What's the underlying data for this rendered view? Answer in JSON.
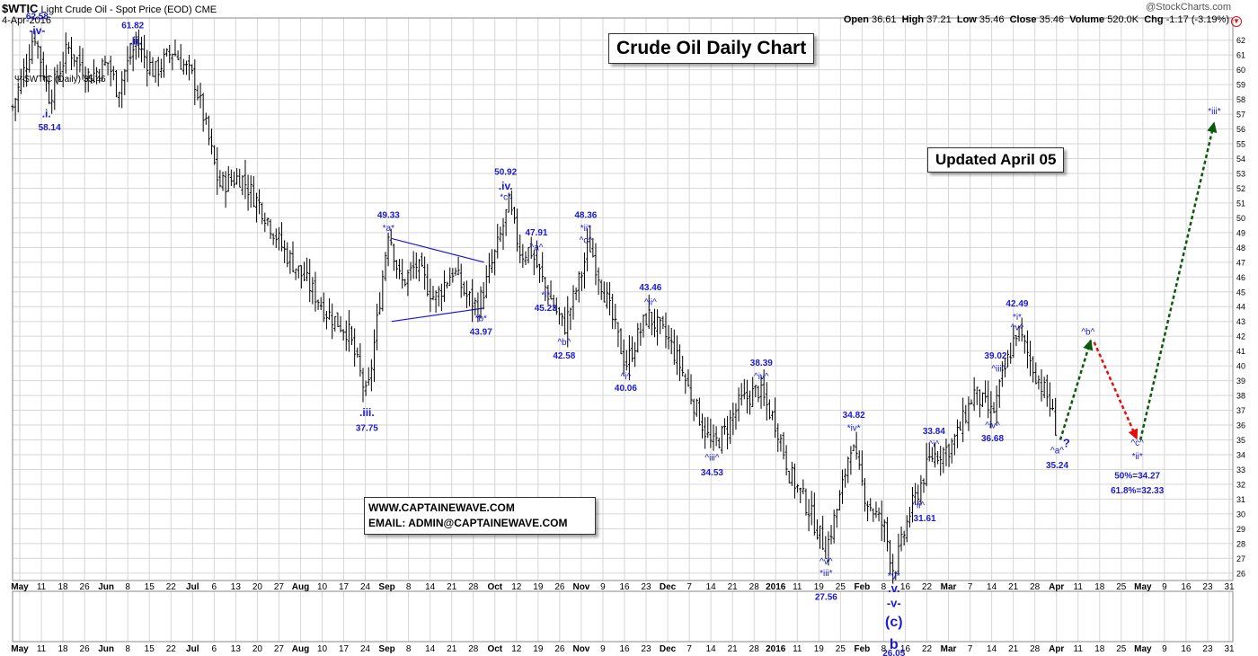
{
  "header": {
    "symbol": "$WTIC",
    "name": "Light Crude Oil - Spot Price (EOD)",
    "exchange": "CME",
    "date": "4-Apr-2016",
    "open_label": "Open",
    "open": "36.61",
    "high_label": "High",
    "high": "37.21",
    "low_label": "Low",
    "low": "35.46",
    "close_label": "Close",
    "close": "35.46",
    "volume_label": "Volume",
    "volume": "520.0K",
    "chg_label": "Chg",
    "chg": "-1.17 (-3.19%)",
    "watermark": "@StockCharts.com",
    "legend": "$WTIC (Daily) 35.46"
  },
  "boxes": {
    "title": "Crude Oil Daily Chart",
    "updated": "Updated April 05",
    "website": "WWW.CAPTAINEWAVE.COM",
    "email": "EMAIL: ADMIN@CAPTAINEWAVE.COM"
  },
  "colors": {
    "price": "#000000",
    "wave_label": "#1a1ad6",
    "triangle": "#1a1ad6",
    "bull_arrow": "#0a5a0a",
    "bear_arrow": "#e01010",
    "grid": "#d6d6d6"
  },
  "chart_data": {
    "type": "ohlc",
    "y_axis": {
      "side": "right",
      "min": 25.5,
      "max": 63.5,
      "ticks": [
        26,
        27,
        28,
        29,
        30,
        31,
        32,
        33,
        34,
        35,
        36,
        37,
        38,
        39,
        40,
        41,
        42,
        43,
        44,
        45,
        46,
        47,
        48,
        49,
        50,
        51,
        52,
        53,
        54,
        55,
        56,
        57,
        58,
        59,
        60,
        61,
        62
      ]
    },
    "x_axis": {
      "ticks": [
        {
          "label": "May",
          "bold": true
        },
        {
          "label": "11"
        },
        {
          "label": "18"
        },
        {
          "label": "26"
        },
        {
          "label": "Jun",
          "bold": true
        },
        {
          "label": "8"
        },
        {
          "label": "15"
        },
        {
          "label": "22"
        },
        {
          "label": "Jul",
          "bold": true
        },
        {
          "label": "6"
        },
        {
          "label": "13"
        },
        {
          "label": "20"
        },
        {
          "label": "27"
        },
        {
          "label": "Aug",
          "bold": true
        },
        {
          "label": "10"
        },
        {
          "label": "17"
        },
        {
          "label": "24"
        },
        {
          "label": "Sep",
          "bold": true
        },
        {
          "label": "8"
        },
        {
          "label": "14"
        },
        {
          "label": "21"
        },
        {
          "label": "28"
        },
        {
          "label": "Oct",
          "bold": true
        },
        {
          "label": "12"
        },
        {
          "label": "19"
        },
        {
          "label": "26"
        },
        {
          "label": "Nov",
          "bold": true
        },
        {
          "label": "9"
        },
        {
          "label": "16"
        },
        {
          "label": "23"
        },
        {
          "label": "Dec",
          "bold": true
        },
        {
          "label": "7"
        },
        {
          "label": "14"
        },
        {
          "label": "21"
        },
        {
          "label": "28"
        },
        {
          "label": "2016",
          "bold": true
        },
        {
          "label": "11"
        },
        {
          "label": "19"
        },
        {
          "label": "25"
        },
        {
          "label": "Feb",
          "bold": true
        },
        {
          "label": "8"
        },
        {
          "label": "16"
        },
        {
          "label": "22"
        },
        {
          "label": "Mar",
          "bold": true
        },
        {
          "label": "7"
        },
        {
          "label": "14"
        },
        {
          "label": "21"
        },
        {
          "label": "28"
        },
        {
          "label": "Apr",
          "bold": true
        },
        {
          "label": "11"
        },
        {
          "label": "18"
        },
        {
          "label": "25"
        },
        {
          "label": "May",
          "bold": true
        },
        {
          "label": "9"
        },
        {
          "label": "16"
        },
        {
          "label": "23"
        },
        {
          "label": "31"
        }
      ]
    },
    "price_path": [
      {
        "d": "2015-05-01",
        "p": 57.5
      },
      {
        "d": "2015-05-06",
        "p": 60.8
      },
      {
        "d": "2015-05-08",
        "p": 62.58
      },
      {
        "d": "2015-05-13",
        "p": 58.14
      },
      {
        "d": "2015-05-19",
        "p": 61.5
      },
      {
        "d": "2015-05-26",
        "p": 59.5
      },
      {
        "d": "2015-06-01",
        "p": 60.5
      },
      {
        "d": "2015-06-04",
        "p": 58.6
      },
      {
        "d": "2015-06-10",
        "p": 61.82
      },
      {
        "d": "2015-06-16",
        "p": 59.8
      },
      {
        "d": "2015-06-22",
        "p": 61.3
      },
      {
        "d": "2015-06-29",
        "p": 59.3
      },
      {
        "d": "2015-07-02",
        "p": 56.8
      },
      {
        "d": "2015-07-07",
        "p": 52.2
      },
      {
        "d": "2015-07-14",
        "p": 52.8
      },
      {
        "d": "2015-07-21",
        "p": 50.6
      },
      {
        "d": "2015-07-28",
        "p": 47.8
      },
      {
        "d": "2015-08-04",
        "p": 45.8
      },
      {
        "d": "2015-08-11",
        "p": 43.6
      },
      {
        "d": "2015-08-18",
        "p": 42.3
      },
      {
        "d": "2015-08-24",
        "p": 37.75
      },
      {
        "d": "2015-08-27",
        "p": 42.5
      },
      {
        "d": "2015-08-31",
        "p": 49.33
      },
      {
        "d": "2015-09-04",
        "p": 45.5
      },
      {
        "d": "2015-09-09",
        "p": 46.8
      },
      {
        "d": "2015-09-15",
        "p": 44.5
      },
      {
        "d": "2015-09-21",
        "p": 46.5
      },
      {
        "d": "2015-09-25",
        "p": 44.8
      },
      {
        "d": "2015-09-29",
        "p": 43.97
      },
      {
        "d": "2015-10-02",
        "p": 45.8
      },
      {
        "d": "2015-10-06",
        "p": 48.5
      },
      {
        "d": "2015-10-09",
        "p": 50.92
      },
      {
        "d": "2015-10-13",
        "p": 47.5
      },
      {
        "d": "2015-10-16",
        "p": 47.91
      },
      {
        "d": "2015-10-21",
        "p": 45.23
      },
      {
        "d": "2015-10-27",
        "p": 42.58
      },
      {
        "d": "2015-11-02",
        "p": 46.5
      },
      {
        "d": "2015-11-04",
        "p": 48.36
      },
      {
        "d": "2015-11-10",
        "p": 44.3
      },
      {
        "d": "2015-11-16",
        "p": 40.06
      },
      {
        "d": "2015-11-23",
        "p": 43.46
      },
      {
        "d": "2015-11-30",
        "p": 41.7
      },
      {
        "d": "2015-12-04",
        "p": 39.8
      },
      {
        "d": "2015-12-09",
        "p": 37.0
      },
      {
        "d": "2015-12-14",
        "p": 34.53
      },
      {
        "d": "2015-12-18",
        "p": 35.5
      },
      {
        "d": "2015-12-23",
        "p": 37.5
      },
      {
        "d": "2015-12-29",
        "p": 38.39
      },
      {
        "d": "2016-01-04",
        "p": 36.0
      },
      {
        "d": "2016-01-08",
        "p": 32.8
      },
      {
        "d": "2016-01-14",
        "p": 30.5
      },
      {
        "d": "2016-01-20",
        "p": 27.56
      },
      {
        "d": "2016-01-25",
        "p": 31.5
      },
      {
        "d": "2016-01-28",
        "p": 34.82
      },
      {
        "d": "2016-02-02",
        "p": 31.0
      },
      {
        "d": "2016-02-08",
        "p": 29.0
      },
      {
        "d": "2016-02-11",
        "p": 26.05
      },
      {
        "d": "2016-02-16",
        "p": 30.0
      },
      {
        "d": "2016-02-19",
        "p": 31.61
      },
      {
        "d": "2016-02-23",
        "p": 33.84
      },
      {
        "d": "2016-02-29",
        "p": 34.5
      },
      {
        "d": "2016-03-03",
        "p": 35.5
      },
      {
        "d": "2016-03-08",
        "p": 38.2
      },
      {
        "d": "2016-03-14",
        "p": 36.68
      },
      {
        "d": "2016-03-17",
        "p": 39.02
      },
      {
        "d": "2016-03-22",
        "p": 42.49
      },
      {
        "d": "2016-03-28",
        "p": 39.5
      },
      {
        "d": "2016-04-01",
        "p": 37.8
      },
      {
        "d": "2016-04-04",
        "p": 35.46
      }
    ],
    "triangle": {
      "upper": [
        {
          "d": "2015-09-01",
          "p": 48.6
        },
        {
          "d": "2015-10-01",
          "p": 47.0
        }
      ],
      "lower": [
        {
          "d": "2015-09-01",
          "p": 43.0
        },
        {
          "d": "2015-10-01",
          "p": 43.9
        }
      ]
    },
    "projection_arrows": [
      {
        "color": "bull",
        "from": {
          "d": "2016-04-05",
          "p": 35.0
        },
        "to": {
          "d": "2016-04-15",
          "p": 41.8
        }
      },
      {
        "color": "bear",
        "from": {
          "d": "2016-04-16",
          "p": 41.6
        },
        "to": {
          "d": "2016-04-30",
          "p": 35.0
        }
      },
      {
        "color": "bull",
        "from": {
          "d": "2016-05-01",
          "p": 35.0
        },
        "to": {
          "d": "2016-05-25",
          "p": 56.5
        }
      }
    ],
    "labels": [
      {
        "text": "62.58",
        "d": "2015-05-09",
        "p": 63.4,
        "bold": true,
        "size": 10
      },
      {
        "text": "-iv-",
        "d": "2015-05-09",
        "p": 62.4,
        "bold": true,
        "size": 12
      },
      {
        "text": "61.82",
        "d": "2015-06-09",
        "p": 62.8,
        "bold": true,
        "size": 10
      },
      {
        "text": ".ii.",
        "d": "2015-06-10",
        "p": 61.7,
        "bold": true,
        "size": 12
      },
      {
        "text": ".i.",
        "d": "2015-05-12",
        "p": 56.8,
        "bold": true,
        "size": 12
      },
      {
        "text": "58.14",
        "d": "2015-05-13",
        "p": 55.9,
        "bold": true,
        "size": 10
      },
      {
        "text": "49.33",
        "d": "2015-08-31",
        "p": 50.0,
        "bold": true,
        "size": 10
      },
      {
        "text": "*a*",
        "d": "2015-08-31",
        "p": 49.1,
        "bold": false,
        "size": 10
      },
      {
        "text": "50.92",
        "d": "2015-10-08",
        "p": 52.9,
        "bold": true,
        "size": 10
      },
      {
        "text": ".iv.",
        "d": "2015-10-08",
        "p": 51.9,
        "bold": true,
        "size": 12
      },
      {
        "text": "*c*",
        "d": "2015-10-08",
        "p": 51.2,
        "bold": false,
        "size": 10
      },
      {
        "text": "47.91",
        "d": "2015-10-18",
        "p": 48.8,
        "bold": true,
        "size": 10
      },
      {
        "text": "^a^",
        "d": "2015-10-18",
        "p": 47.8,
        "bold": false,
        "size": 10
      },
      {
        "text": "48.36",
        "d": "2015-11-03",
        "p": 50.0,
        "bold": true,
        "size": 10
      },
      {
        "text": "*ii*",
        "d": "2015-11-03",
        "p": 49.1,
        "bold": false,
        "size": 10
      },
      {
        "text": "^c^",
        "d": "2015-11-03",
        "p": 48.3,
        "bold": false,
        "size": 10
      },
      {
        "text": "*i*",
        "d": "2015-10-21",
        "p": 44.6,
        "bold": false,
        "size": 10
      },
      {
        "text": "45.23",
        "d": "2015-10-21",
        "p": 43.7,
        "bold": true,
        "size": 10
      },
      {
        "text": "*b*",
        "d": "2015-09-30",
        "p": 43.0,
        "bold": false,
        "size": 10
      },
      {
        "text": "43.97",
        "d": "2015-09-30",
        "p": 42.1,
        "bold": true,
        "size": 10
      },
      {
        "text": "^b^",
        "d": "2015-10-27",
        "p": 41.4,
        "bold": false,
        "size": 10
      },
      {
        "text": "42.58",
        "d": "2015-10-27",
        "p": 40.5,
        "bold": true,
        "size": 10
      },
      {
        "text": "43.46",
        "d": "2015-11-24",
        "p": 45.1,
        "bold": true,
        "size": 10
      },
      {
        "text": "^ii^",
        "d": "2015-11-24",
        "p": 44.1,
        "bold": false,
        "size": 10
      },
      {
        "text": "^i^",
        "d": "2015-11-16",
        "p": 39.1,
        "bold": false,
        "size": 10
      },
      {
        "text": "40.06",
        "d": "2015-11-16",
        "p": 38.3,
        "bold": true,
        "size": 10
      },
      {
        "text": ".iii.",
        "d": "2015-08-24",
        "p": 36.6,
        "bold": true,
        "size": 12
      },
      {
        "text": "37.75",
        "d": "2015-08-24",
        "p": 35.6,
        "bold": true,
        "size": 10
      },
      {
        "text": "38.39",
        "d": "2015-12-30",
        "p": 40.0,
        "bold": true,
        "size": 10
      },
      {
        "text": "^iv^",
        "d": "2015-12-30",
        "p": 39.1,
        "bold": false,
        "size": 10
      },
      {
        "text": "^iii^",
        "d": "2015-12-14",
        "p": 33.6,
        "bold": false,
        "size": 10
      },
      {
        "text": "34.53",
        "d": "2015-12-14",
        "p": 32.6,
        "bold": true,
        "size": 10
      },
      {
        "text": "34.82",
        "d": "2016-01-29",
        "p": 36.5,
        "bold": true,
        "size": 10
      },
      {
        "text": "*iv*",
        "d": "2016-01-29",
        "p": 35.6,
        "bold": false,
        "size": 10
      },
      {
        "text": "^v^",
        "d": "2016-01-20",
        "p": 26.6,
        "bold": false,
        "size": 10
      },
      {
        "text": "*iii*",
        "d": "2016-01-20",
        "p": 25.8,
        "bold": false,
        "size": 10
      },
      {
        "text": "27.56",
        "d": "2016-01-20",
        "p": 24.2,
        "bold": true,
        "size": 10
      },
      {
        "text": "*v*",
        "d": "2016-02-11",
        "p": 25.6,
        "bold": false,
        "size": 11
      },
      {
        "text": ".v.",
        "d": "2016-02-11",
        "p": 24.7,
        "bold": true,
        "size": 13
      },
      {
        "text": "-v-",
        "d": "2016-02-11",
        "p": 23.7,
        "bold": true,
        "size": 13
      },
      {
        "text": "(c)",
        "d": "2016-02-11",
        "p": 22.4,
        "bold": true,
        "size": 16
      },
      {
        "text": "b",
        "d": "2016-02-11",
        "p": 20.9,
        "bold": true,
        "size": 16
      },
      {
        "text": "26.05",
        "d": "2016-02-11",
        "p": 20.4,
        "bold": true,
        "size": 10
      },
      {
        "text": "33.84",
        "d": "2016-02-24",
        "p": 35.4,
        "bold": true,
        "size": 10
      },
      {
        "text": "^i^",
        "d": "2016-02-24",
        "p": 34.5,
        "bold": false,
        "size": 10
      },
      {
        "text": "^ii^",
        "d": "2016-02-19",
        "p": 30.4,
        "bold": false,
        "size": 10
      },
      {
        "text": "31.61",
        "d": "2016-02-21",
        "p": 29.5,
        "bold": true,
        "size": 10
      },
      {
        "text": "39.02",
        "d": "2016-03-15",
        "p": 40.5,
        "bold": true,
        "size": 10
      },
      {
        "text": "^iii^",
        "d": "2016-03-16",
        "p": 39.6,
        "bold": false,
        "size": 10
      },
      {
        "text": "^iv^",
        "d": "2016-03-14",
        "p": 35.8,
        "bold": false,
        "size": 10
      },
      {
        "text": "36.68",
        "d": "2016-03-14",
        "p": 34.9,
        "bold": true,
        "size": 10
      },
      {
        "text": "42.49",
        "d": "2016-03-22",
        "p": 44.0,
        "bold": true,
        "size": 10
      },
      {
        "text": "*i*",
        "d": "2016-03-22",
        "p": 43.1,
        "bold": false,
        "size": 10
      },
      {
        "text": "^v^",
        "d": "2016-03-22",
        "p": 42.4,
        "bold": false,
        "size": 10
      },
      {
        "text": "^a^",
        "d": "2016-04-04",
        "p": 34.1,
        "bold": false,
        "size": 10
      },
      {
        "text": "?",
        "d": "2016-04-07",
        "p": 34.5,
        "bold": true,
        "size": 13
      },
      {
        "text": "35.24",
        "d": "2016-04-04",
        "p": 33.1,
        "bold": true,
        "size": 10
      },
      {
        "text": "^b^",
        "d": "2016-04-14",
        "p": 42.1,
        "bold": false,
        "size": 10
      },
      {
        "text": "^c^",
        "d": "2016-04-30",
        "p": 34.6,
        "bold": false,
        "size": 10
      },
      {
        "text": "*ii*",
        "d": "2016-04-30",
        "p": 33.7,
        "bold": false,
        "size": 10
      },
      {
        "text": "50%=34.27",
        "d": "2016-04-30",
        "p": 32.4,
        "bold": true,
        "size": 10
      },
      {
        "text": "61.8%=32.33",
        "d": "2016-04-30",
        "p": 31.4,
        "bold": true,
        "size": 10
      },
      {
        "text": "*iii*",
        "d": "2016-05-25",
        "p": 57.0,
        "bold": false,
        "size": 10
      }
    ]
  }
}
